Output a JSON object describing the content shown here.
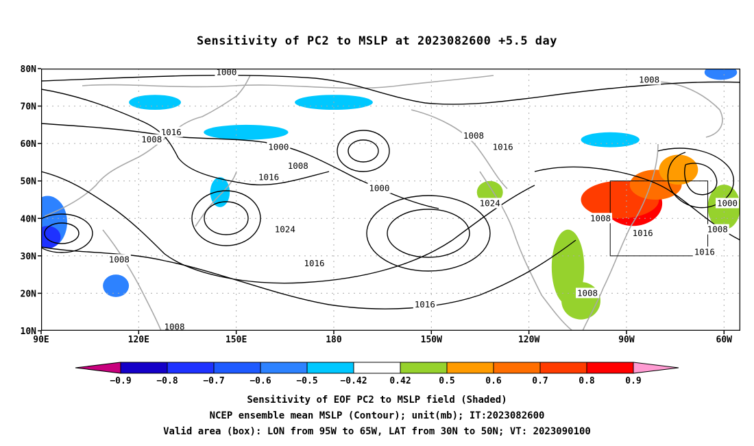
{
  "title": "Sensitivity of PC2 to MSLP at 2023082600 +5.5 day",
  "footer": {
    "line1": "Sensitivity of EOF PC2 to MSLP field (Shaded)",
    "line2": "NCEP ensemble mean MSLP (Contour); unit(mb); IT:2023082600",
    "line3": "Valid area (box): LON from 95W to 65W, LAT from 30N to 50N; VT: 2023090100"
  },
  "map": {
    "lon_range_deg_east": [
      90,
      305
    ],
    "lat_range": [
      10,
      80
    ],
    "lat_ticks": [
      {
        "lat": 80,
        "label": "80N"
      },
      {
        "lat": 70,
        "label": "70N"
      },
      {
        "lat": 60,
        "label": "60N"
      },
      {
        "lat": 50,
        "label": "50N"
      },
      {
        "lat": 40,
        "label": "40N"
      },
      {
        "lat": 30,
        "label": "30N"
      },
      {
        "lat": 20,
        "label": "20N"
      },
      {
        "lat": 10,
        "label": "10N"
      }
    ],
    "lon_ticks": [
      {
        "lon": 90,
        "label": "90E"
      },
      {
        "lon": 120,
        "label": "120E"
      },
      {
        "lon": 150,
        "label": "150E"
      },
      {
        "lon": 180,
        "label": "180"
      },
      {
        "lon": 210,
        "label": "150W"
      },
      {
        "lon": 240,
        "label": "120W"
      },
      {
        "lon": 270,
        "label": "90W"
      },
      {
        "lon": 300,
        "label": "60W"
      }
    ],
    "valid_box": {
      "lon_west": 265,
      "lon_east": 295,
      "lat_south": 30,
      "lat_north": 50
    },
    "contour_labels": [
      {
        "text": "1000",
        "lon": 147,
        "lat": 79
      },
      {
        "text": "1008",
        "lon": 277,
        "lat": 77
      },
      {
        "text": "1016",
        "lon": 130,
        "lat": 63
      },
      {
        "text": "1008",
        "lon": 124,
        "lat": 61
      },
      {
        "text": "1000",
        "lon": 163,
        "lat": 59
      },
      {
        "text": "1008",
        "lon": 169,
        "lat": 54
      },
      {
        "text": "1016",
        "lon": 160,
        "lat": 51
      },
      {
        "text": "1008",
        "lon": 223,
        "lat": 62
      },
      {
        "text": "1016",
        "lon": 232,
        "lat": 59
      },
      {
        "text": "1000",
        "lon": 194,
        "lat": 48
      },
      {
        "text": "1024",
        "lon": 228,
        "lat": 44
      },
      {
        "text": "1024",
        "lon": 165,
        "lat": 37
      },
      {
        "text": "1016",
        "lon": 174,
        "lat": 28
      },
      {
        "text": "1008",
        "lon": 114,
        "lat": 29
      },
      {
        "text": "1016",
        "lon": 208,
        "lat": 17
      },
      {
        "text": "1008",
        "lon": 131,
        "lat": 11
      },
      {
        "text": "1008",
        "lon": 262,
        "lat": 40
      },
      {
        "text": "1008",
        "lon": 258,
        "lat": 20
      },
      {
        "text": "1016",
        "lon": 275,
        "lat": 36
      },
      {
        "text": "1000",
        "lon": 301,
        "lat": 44
      },
      {
        "text": "1008",
        "lon": 298,
        "lat": 37
      },
      {
        "text": "1016",
        "lon": 294,
        "lat": 31
      }
    ]
  },
  "colorbar": {
    "colors": [
      "#c8007d",
      "#1400c8",
      "#1e32ff",
      "#1e5aff",
      "#2d82ff",
      "#00c8ff",
      "#ffffff",
      "#96d22d",
      "#ff9b00",
      "#ff6e00",
      "#ff3c00",
      "#ff0000",
      "#ff9bd2"
    ],
    "labels": [
      "−0.9",
      "−0.8",
      "−0.7",
      "−0.6",
      "−0.5",
      "−0.42",
      "0.42",
      "0.5",
      "0.6",
      "0.7",
      "0.8",
      "0.9"
    ]
  },
  "shading": [
    {
      "color": "#ff0000",
      "lon": 272,
      "lat": 44,
      "rlon": 9,
      "rlat": 6
    },
    {
      "color": "#ff3c00",
      "lon": 268,
      "lat": 45,
      "rlon": 12,
      "rlat": 5
    },
    {
      "color": "#ff6e00",
      "lon": 279,
      "lat": 49,
      "rlon": 8,
      "rlat": 4
    },
    {
      "color": "#ff9b00",
      "lon": 286,
      "lat": 53,
      "rlon": 6,
      "rlat": 4
    },
    {
      "color": "#96d22d",
      "lon": 252,
      "lat": 27,
      "rlon": 5,
      "rlat": 10
    },
    {
      "color": "#96d22d",
      "lon": 256,
      "lat": 18,
      "rlon": 6,
      "rlat": 5
    },
    {
      "color": "#96d22d",
      "lon": 300,
      "lat": 43,
      "rlon": 5,
      "rlat": 6
    },
    {
      "color": "#96d22d",
      "lon": 228,
      "lat": 47,
      "rlon": 4,
      "rlat": 3
    },
    {
      "color": "#00c8ff",
      "lon": 153,
      "lat": 63,
      "rlon": 13,
      "rlat": 2
    },
    {
      "color": "#00c8ff",
      "lon": 180,
      "lat": 71,
      "rlon": 12,
      "rlat": 2
    },
    {
      "color": "#00c8ff",
      "lon": 125,
      "lat": 71,
      "rlon": 8,
      "rlat": 2
    },
    {
      "color": "#00c8ff",
      "lon": 265,
      "lat": 61,
      "rlon": 9,
      "rlat": 2
    },
    {
      "color": "#00c8ff",
      "lon": 145,
      "lat": 47,
      "rlon": 3,
      "rlat": 4
    },
    {
      "color": "#2d82ff",
      "lon": 92,
      "lat": 39,
      "rlon": 6,
      "rlat": 7
    },
    {
      "color": "#1e32ff",
      "lon": 92,
      "lat": 35,
      "rlon": 4,
      "rlat": 3
    },
    {
      "color": "#2d82ff",
      "lon": 113,
      "lat": 22,
      "rlon": 4,
      "rlat": 3
    },
    {
      "color": "#2d82ff",
      "lon": 299,
      "lat": 79,
      "rlon": 5,
      "rlat": 2
    }
  ]
}
